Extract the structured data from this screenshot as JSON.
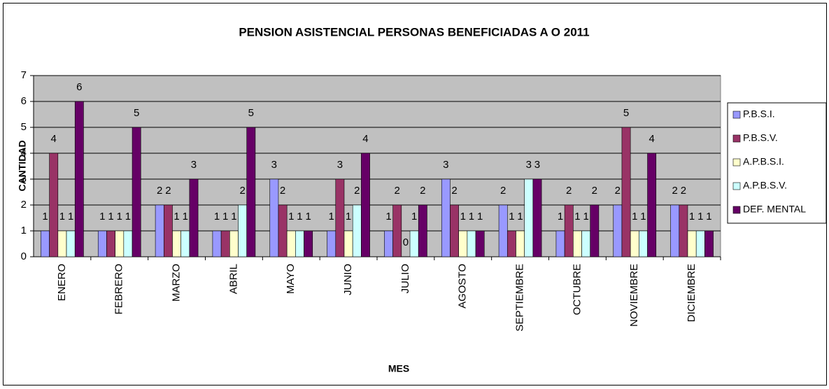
{
  "chart_data": {
    "type": "bar",
    "title": "PENSION ASISTENCIAL PERSONAS BENEFICIADAS A O  2011",
    "x_label": "MES",
    "y_label": "CANTIDAD",
    "categories": [
      "ENERO",
      "FEBRERO",
      "MARZO",
      "ABRIL",
      "MAYO",
      "JUNIO",
      "JULIO",
      "AGOSTO",
      "SEPTIEMBRE",
      "OCTUBRE",
      "NOVIEMBRE",
      "DICIEMBRE"
    ],
    "series": [
      {
        "name": "P.B.S.I.",
        "color": "#9999ff",
        "values": [
          1,
          1,
          2,
          1,
          3,
          1,
          1,
          3,
          2,
          1,
          2,
          2
        ]
      },
      {
        "name": "P.B.S.V.",
        "color": "#993366",
        "values": [
          4,
          1,
          2,
          1,
          2,
          3,
          2,
          2,
          1,
          2,
          5,
          2
        ]
      },
      {
        "name": "A.P.B.S.I.",
        "color": "#ffffcc",
        "values": [
          1,
          1,
          1,
          1,
          1,
          1,
          0,
          1,
          1,
          1,
          1,
          1
        ]
      },
      {
        "name": "A.P.B.S.V.",
        "color": "#ccffff",
        "values": [
          1,
          1,
          1,
          2,
          1,
          2,
          1,
          1,
          3,
          1,
          1,
          1
        ]
      },
      {
        "name": "DEF. MENTAL",
        "color": "#660066",
        "values": [
          6,
          5,
          3,
          5,
          1,
          4,
          2,
          1,
          3,
          2,
          4,
          1
        ]
      }
    ],
    "ylim": [
      0,
      7
    ],
    "yticks": [
      0,
      1,
      2,
      3,
      4,
      5,
      6,
      7
    ],
    "grid": true,
    "legend": "right"
  }
}
